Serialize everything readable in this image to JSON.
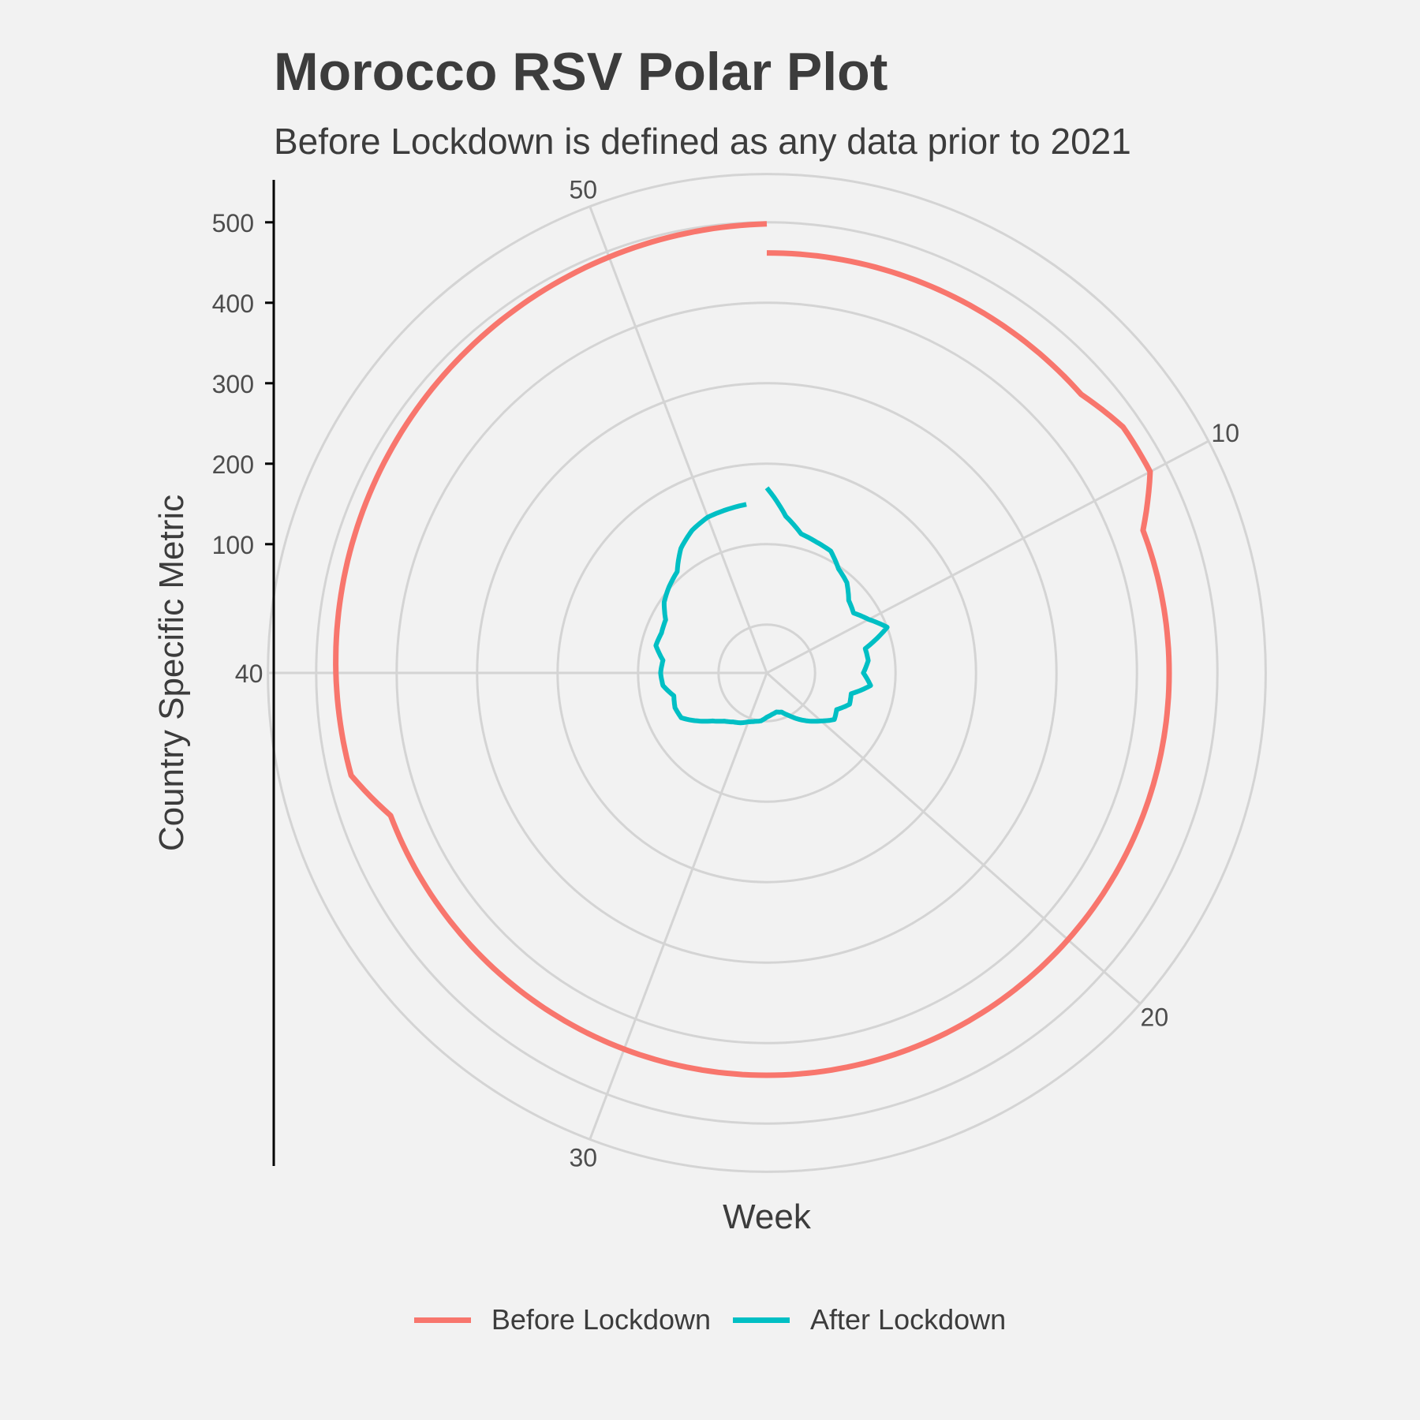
{
  "title": "Morocco RSV Polar Plot",
  "subtitle": "Before Lockdown is defined as any data prior to 2021",
  "colors": {
    "background": "#f2f2f2",
    "grid": "#d4d4d4",
    "before": "#F8766D",
    "after": "#00BFC4",
    "text": "#3c3c3c"
  },
  "chart_data": {
    "type": "line",
    "coordinate_system": "polar",
    "title": "Morocco RSV Polar Plot",
    "subtitle": "Before Lockdown is defined as any data prior to 2021",
    "xlabel": "Week",
    "ylabel": "Country Specific Metric",
    "theta_range": [
      1,
      53
    ],
    "theta_ticks": [
      10,
      20,
      30,
      40,
      50
    ],
    "r_range": [
      -60,
      560
    ],
    "r_ticks": [
      100,
      200,
      300,
      400,
      500
    ],
    "grid": true,
    "legend_position": "bottom",
    "series": [
      {
        "name": "Before Lockdown",
        "color": "#F8766D",
        "points": [
          [
            1,
            462
          ],
          [
            8,
            462
          ],
          [
            9,
            478
          ],
          [
            10,
            478
          ],
          [
            11,
            440
          ],
          [
            37,
            440
          ],
          [
            38,
            472
          ],
          [
            53,
            498
          ]
        ]
      },
      {
        "name": "After Lockdown",
        "color": "#00BFC4",
        "points": [
          [
            1,
            170
          ],
          [
            2,
            136
          ],
          [
            3,
            118
          ],
          [
            4,
            114
          ],
          [
            5,
            111
          ],
          [
            6,
            97
          ],
          [
            7,
            90
          ],
          [
            8,
            76
          ],
          [
            9,
            71
          ],
          [
            10,
            83
          ],
          [
            11,
            100
          ],
          [
            12,
            66
          ],
          [
            13,
            67
          ],
          [
            14,
            60
          ],
          [
            15,
            70
          ],
          [
            16,
            48
          ],
          [
            17,
            50
          ],
          [
            18,
            38
          ],
          [
            19,
            42
          ],
          [
            20,
            30
          ],
          [
            21,
            20
          ],
          [
            22,
            10
          ],
          [
            23,
            0
          ],
          [
            24,
            -8
          ],
          [
            25,
            -10
          ],
          [
            26,
            -8
          ],
          [
            27,
            -5
          ],
          [
            28,
            0
          ],
          [
            29,
            2
          ],
          [
            30,
            5
          ],
          [
            31,
            10
          ],
          [
            32,
            14
          ],
          [
            33,
            20
          ],
          [
            34,
            30
          ],
          [
            35,
            45
          ],
          [
            36,
            60
          ],
          [
            37,
            62
          ],
          [
            38,
            59
          ],
          [
            39,
            70
          ],
          [
            40,
            72
          ],
          [
            41,
            70
          ],
          [
            42,
            82
          ],
          [
            43,
            80
          ],
          [
            44,
            82
          ],
          [
            45,
            95
          ],
          [
            46,
            102
          ],
          [
            47,
            108
          ],
          [
            48,
            128
          ],
          [
            49,
            140
          ],
          [
            50,
            147
          ],
          [
            51,
            149
          ],
          [
            52,
            151
          ]
        ]
      }
    ]
  }
}
